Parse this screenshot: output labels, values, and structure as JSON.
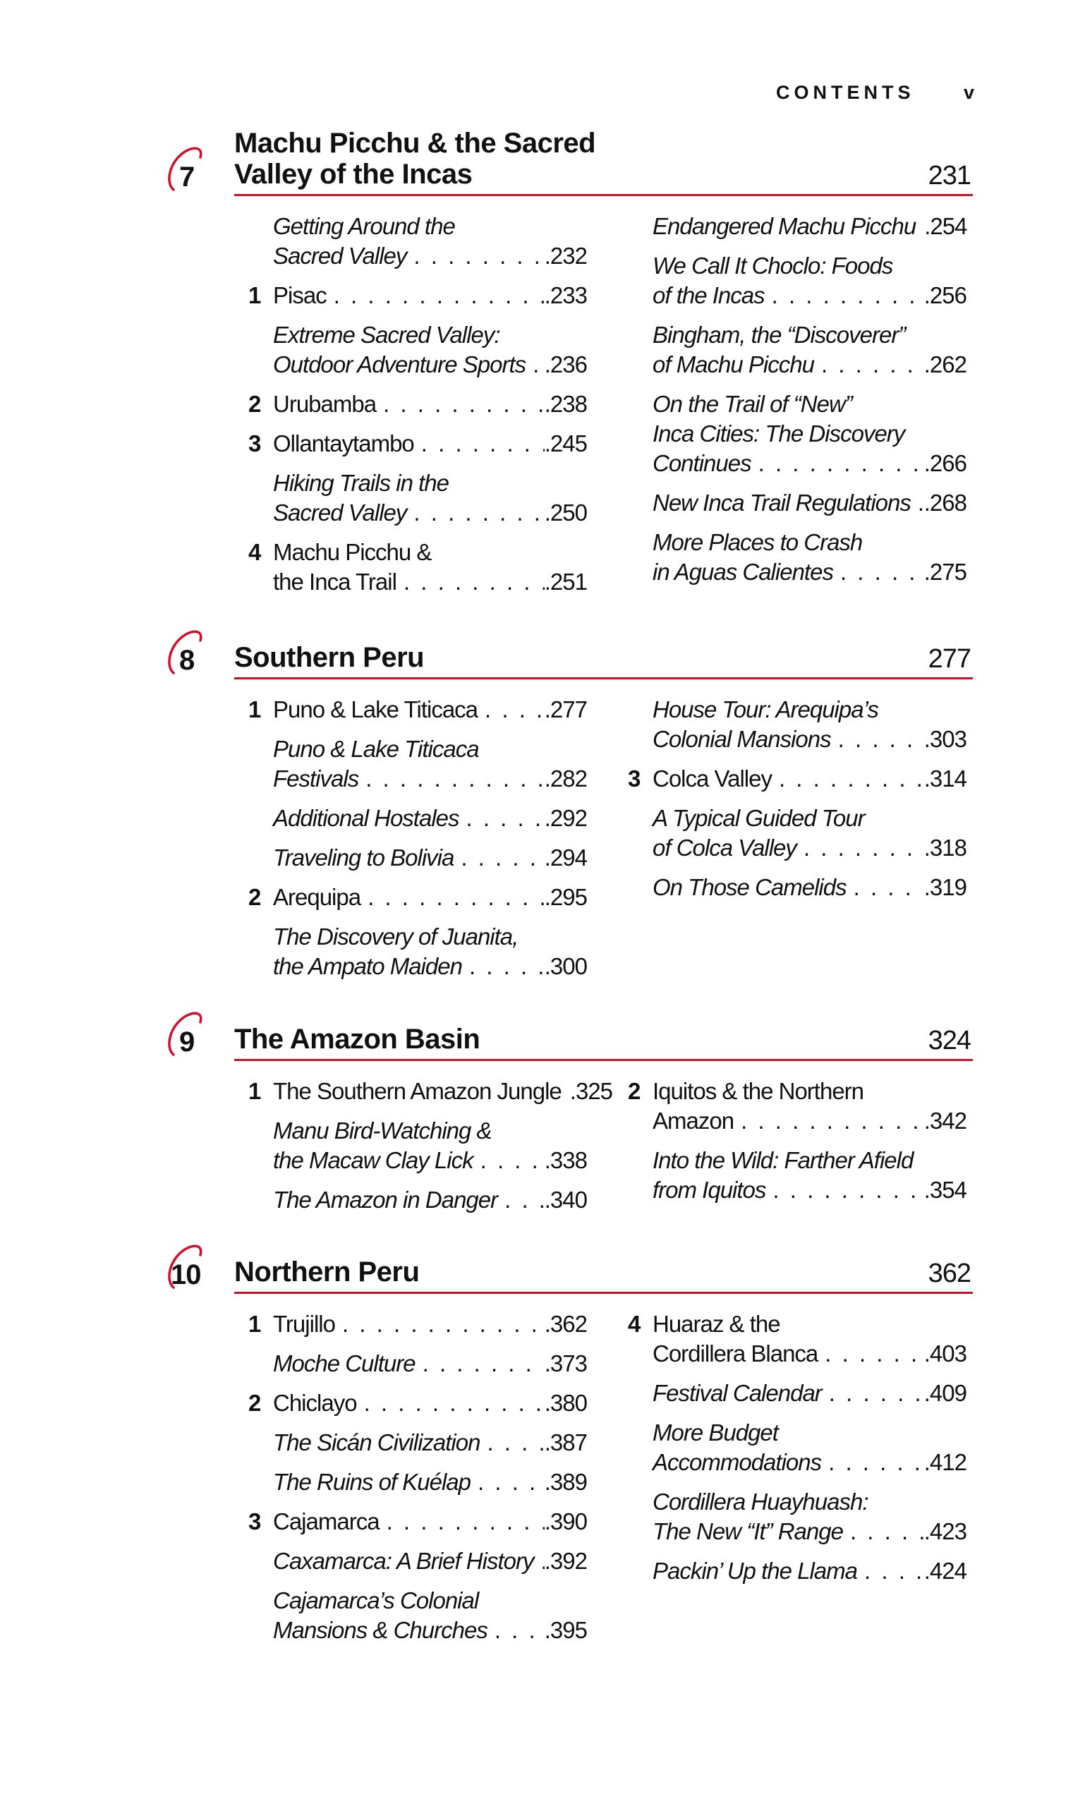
{
  "header": {
    "running_title": "CONTENTS",
    "folio": "v"
  },
  "accent_color": "#d0102a",
  "chapters": [
    {
      "number": "7",
      "title": [
        "Machu Picchu & the Sacred",
        "Valley of the Incas"
      ],
      "page": "231",
      "left": [
        {
          "num": "",
          "italic": true,
          "lines": [
            "Getting Around the",
            "Sacred Valley"
          ],
          "page": ".232"
        },
        {
          "num": "1",
          "italic": false,
          "lines": [
            "Pisac"
          ],
          "page": ".233"
        },
        {
          "num": "",
          "italic": true,
          "lines": [
            "Extreme Sacred Valley:",
            "Outdoor Adventure Sports"
          ],
          "page": ".236"
        },
        {
          "num": "2",
          "italic": false,
          "lines": [
            "Urubamba"
          ],
          "page": ".238"
        },
        {
          "num": "3",
          "italic": false,
          "lines": [
            "Ollantaytambo"
          ],
          "page": ".245"
        },
        {
          "num": "",
          "italic": true,
          "lines": [
            "Hiking Trails in the",
            "Sacred Valley"
          ],
          "page": ".250"
        },
        {
          "num": "4",
          "italic": false,
          "lines": [
            "Machu Picchu &",
            "the Inca Trail"
          ],
          "page": ".251"
        }
      ],
      "right": [
        {
          "num": "",
          "italic": true,
          "lines": [
            "Endangered Machu Picchu"
          ],
          "page": ".254"
        },
        {
          "num": "",
          "italic": true,
          "lines": [
            "We Call It Choclo: Foods",
            "of the Incas"
          ],
          "page": ".256"
        },
        {
          "num": "",
          "italic": true,
          "lines": [
            "Bingham, the “Discoverer”",
            "of Machu Picchu"
          ],
          "page": ".262"
        },
        {
          "num": "",
          "italic": true,
          "lines": [
            "On the Trail of “New”",
            "Inca Cities: The Discovery",
            "Continues"
          ],
          "page": ".266"
        },
        {
          "num": "",
          "italic": true,
          "lines": [
            "New Inca Trail Regulations"
          ],
          "page": ".268"
        },
        {
          "num": "",
          "italic": true,
          "lines": [
            "More Places to Crash",
            "in Aguas Calientes"
          ],
          "page": ".275"
        }
      ]
    },
    {
      "number": "8",
      "title": [
        "Southern Peru"
      ],
      "page": "277",
      "left": [
        {
          "num": "1",
          "italic": false,
          "lines": [
            "Puno & Lake Titicaca"
          ],
          "page": ".277"
        },
        {
          "num": "",
          "italic": true,
          "lines": [
            "Puno & Lake Titicaca",
            "Festivals"
          ],
          "page": ".282"
        },
        {
          "num": "",
          "italic": true,
          "lines": [
            "Additional Hostales"
          ],
          "page": ".292"
        },
        {
          "num": "",
          "italic": true,
          "lines": [
            "Traveling to Bolivia"
          ],
          "page": ".294"
        },
        {
          "num": "2",
          "italic": false,
          "lines": [
            "Arequipa"
          ],
          "page": ".295"
        },
        {
          "num": "",
          "italic": true,
          "lines": [
            "The Discovery of Juanita,",
            "the Ampato Maiden"
          ],
          "page": ".300"
        }
      ],
      "right": [
        {
          "num": "",
          "italic": true,
          "lines": [
            "House Tour: Arequipa’s",
            "Colonial Mansions"
          ],
          "page": ".303"
        },
        {
          "num": "3",
          "italic": false,
          "lines": [
            "Colca Valley"
          ],
          "page": ".314"
        },
        {
          "num": "",
          "italic": true,
          "lines": [
            "A Typical Guided Tour",
            "of Colca Valley"
          ],
          "page": ".318"
        },
        {
          "num": "",
          "italic": true,
          "lines": [
            "On Those Camelids"
          ],
          "page": ".319"
        }
      ]
    },
    {
      "number": "9",
      "title": [
        "The Amazon Basin"
      ],
      "page": "324",
      "left": [
        {
          "num": "1",
          "italic": false,
          "lines": [
            "The Southern Amazon Jungle"
          ],
          "page": ".325"
        },
        {
          "num": "",
          "italic": true,
          "lines": [
            "Manu Bird-Watching &",
            "the Macaw Clay Lick"
          ],
          "page": ".338"
        },
        {
          "num": "",
          "italic": true,
          "lines": [
            "The Amazon in Danger"
          ],
          "page": ".340"
        }
      ],
      "right": [
        {
          "num": "2",
          "italic": false,
          "lines": [
            "Iquitos & the Northern",
            "Amazon"
          ],
          "page": ".342"
        },
        {
          "num": "",
          "italic": true,
          "lines": [
            "Into the Wild: Farther Afield",
            "from Iquitos"
          ],
          "page": ".354"
        }
      ]
    },
    {
      "number": "10",
      "title": [
        "Northern Peru"
      ],
      "page": "362",
      "left": [
        {
          "num": "1",
          "italic": false,
          "lines": [
            "Trujillo"
          ],
          "page": ".362"
        },
        {
          "num": "",
          "italic": true,
          "lines": [
            "Moche Culture"
          ],
          "page": ".373"
        },
        {
          "num": "2",
          "italic": false,
          "lines": [
            "Chiclayo"
          ],
          "page": ".380"
        },
        {
          "num": "",
          "italic": true,
          "lines": [
            "The Sicán Civilization"
          ],
          "page": ".387"
        },
        {
          "num": "",
          "italic": true,
          "lines": [
            "The Ruins of Kuélap"
          ],
          "page": ".389"
        },
        {
          "num": "3",
          "italic": false,
          "lines": [
            "Cajamarca"
          ],
          "page": ".390"
        },
        {
          "num": "",
          "italic": true,
          "lines": [
            "Caxamarca: A Brief History"
          ],
          "page": ".392"
        },
        {
          "num": "",
          "italic": true,
          "lines": [
            "Cajamarca’s Colonial",
            "Mansions & Churches"
          ],
          "page": ".395"
        }
      ],
      "right": [
        {
          "num": "4",
          "italic": false,
          "lines": [
            "Huaraz & the",
            "Cordillera Blanca"
          ],
          "page": ".403"
        },
        {
          "num": "",
          "italic": true,
          "lines": [
            "Festival Calendar"
          ],
          "page": ".409"
        },
        {
          "num": "",
          "italic": true,
          "lines": [
            "More Budget",
            "Accommodations"
          ],
          "page": ".412"
        },
        {
          "num": "",
          "italic": true,
          "lines": [
            "Cordillera Huayhuash:",
            "The New “It” Range"
          ],
          "page": ".423"
        },
        {
          "num": "",
          "italic": true,
          "lines": [
            "Packin’ Up the Llama"
          ],
          "page": ".424"
        }
      ]
    }
  ]
}
